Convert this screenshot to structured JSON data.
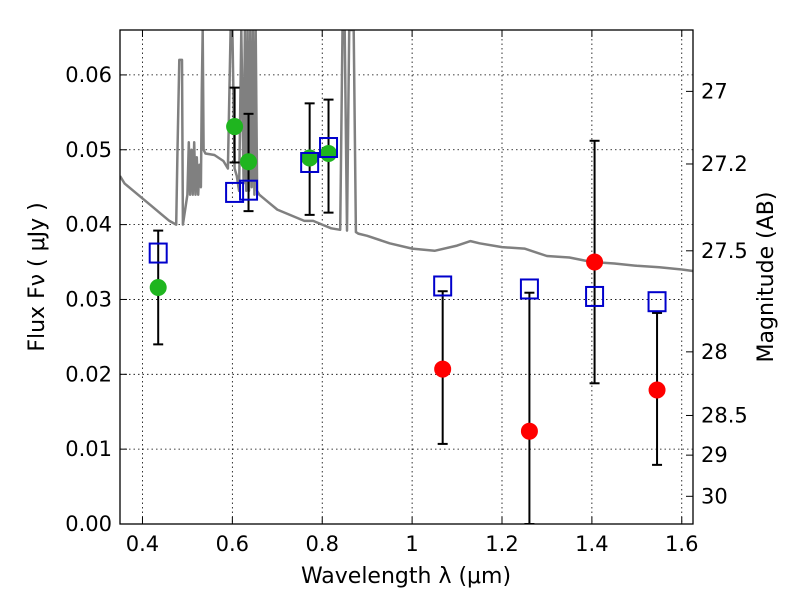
{
  "chart_data": {
    "type": "scatter",
    "xlabel": "Wavelength  λ (μm)",
    "ylabel": "Flux  Fν  ( μJy )",
    "y2label": "Magnitude (AB)",
    "xlim": [
      0.35,
      1.625
    ],
    "ylim": [
      0.0,
      0.066
    ],
    "xticks": [
      0.4,
      0.6,
      0.8,
      1.0,
      1.2,
      1.4,
      1.6
    ],
    "xtick_labels": [
      "0.4",
      "0.6",
      "0.8",
      "1",
      "1.2",
      "1.4",
      "1.6"
    ],
    "yticks": [
      0.0,
      0.01,
      0.02,
      0.03,
      0.04,
      0.05,
      0.06
    ],
    "ytick_labels": [
      "0.00",
      "0.01",
      "0.02",
      "0.03",
      "0.04",
      "0.05",
      "0.06"
    ],
    "y2ticks": [
      {
        "label": "27",
        "flux": 0.0578
      },
      {
        "label": "27.2",
        "flux": 0.0481
      },
      {
        "label": "27.5",
        "flux": 0.0365
      },
      {
        "label": "28",
        "flux": 0.023
      },
      {
        "label": "28.5",
        "flux": 0.0145
      },
      {
        "label": "29",
        "flux": 0.0092
      },
      {
        "label": "30",
        "flux": 0.0037
      }
    ],
    "grid": true,
    "model_spectrum": {
      "color": "#808080",
      "x": [
        0.35,
        0.36,
        0.38,
        0.4,
        0.42,
        0.44,
        0.46,
        0.475,
        0.478,
        0.482,
        0.484,
        0.486,
        0.488,
        0.49,
        0.5,
        0.503,
        0.506,
        0.509,
        0.512,
        0.515,
        0.518,
        0.521,
        0.524,
        0.527,
        0.53,
        0.532,
        0.534,
        0.536,
        0.54,
        0.56,
        0.58,
        0.59,
        0.596,
        0.6,
        0.605,
        0.61,
        0.615,
        0.62,
        0.625,
        0.628,
        0.631,
        0.634,
        0.637,
        0.64,
        0.643,
        0.646,
        0.649,
        0.652,
        0.655,
        0.66,
        0.68,
        0.7,
        0.72,
        0.74,
        0.76,
        0.78,
        0.8,
        0.82,
        0.84,
        0.845,
        0.85,
        0.855,
        0.86,
        0.865,
        0.87,
        0.875,
        0.88,
        0.9,
        0.95,
        1.0,
        1.05,
        1.1,
        1.13,
        1.15,
        1.2,
        1.25,
        1.3,
        1.35,
        1.4,
        1.45,
        1.5,
        1.55,
        1.6,
        1.625
      ],
      "y": [
        0.0465,
        0.0455,
        0.0445,
        0.0435,
        0.0425,
        0.0415,
        0.0405,
        0.04,
        0.05,
        0.062,
        0.062,
        0.062,
        0.062,
        0.04,
        0.044,
        0.051,
        0.044,
        0.05,
        0.044,
        0.051,
        0.044,
        0.049,
        0.044,
        0.048,
        0.045,
        0.058,
        0.066,
        0.05,
        0.0495,
        0.0493,
        0.0485,
        0.0475,
        0.066,
        0.066,
        0.0475,
        0.0465,
        0.0445,
        0.066,
        0.0455,
        0.066,
        0.0445,
        0.066,
        0.0445,
        0.066,
        0.045,
        0.066,
        0.044,
        0.066,
        0.0445,
        0.044,
        0.043,
        0.042,
        0.0415,
        0.041,
        0.0405,
        0.0405,
        0.04,
        0.0395,
        0.0393,
        0.066,
        0.066,
        0.0392,
        0.066,
        0.066,
        0.066,
        0.039,
        0.0388,
        0.0385,
        0.0375,
        0.0368,
        0.0365,
        0.0372,
        0.0378,
        0.0375,
        0.037,
        0.0368,
        0.0358,
        0.0356,
        0.035,
        0.0348,
        0.0345,
        0.0343,
        0.034,
        0.0338
      ]
    },
    "series": [
      {
        "marker": "circle",
        "color": "#1fb51f",
        "x": [
          0.435,
          0.605,
          0.636,
          0.772,
          0.814
        ],
        "y": [
          0.0316,
          0.0531,
          0.0484,
          0.0489,
          0.0495
        ],
        "err_low": [
          0.024,
          0.0483,
          0.0418,
          0.0413,
          0.0416
        ],
        "err_high": [
          0.0392,
          0.0583,
          0.0548,
          0.0562,
          0.0567
        ]
      },
      {
        "marker": "circle",
        "color": "#ff0000",
        "x": [
          1.068,
          1.261,
          1.406,
          1.545
        ],
        "y": [
          0.0207,
          0.0124,
          0.035,
          0.0179
        ],
        "err_low": [
          0.0107,
          0.0,
          0.0188,
          0.0079
        ],
        "err_high": [
          0.0311,
          0.0309,
          0.0512,
          0.0282
        ]
      },
      {
        "marker": "open-square",
        "color": "#0000cc",
        "x": [
          0.435,
          0.605,
          0.636,
          0.772,
          0.814,
          1.068,
          1.261,
          1.406,
          1.545
        ],
        "y": [
          0.0362,
          0.0443,
          0.0446,
          0.0483,
          0.0503,
          0.0318,
          0.0314,
          0.0304,
          0.0297
        ]
      }
    ]
  }
}
